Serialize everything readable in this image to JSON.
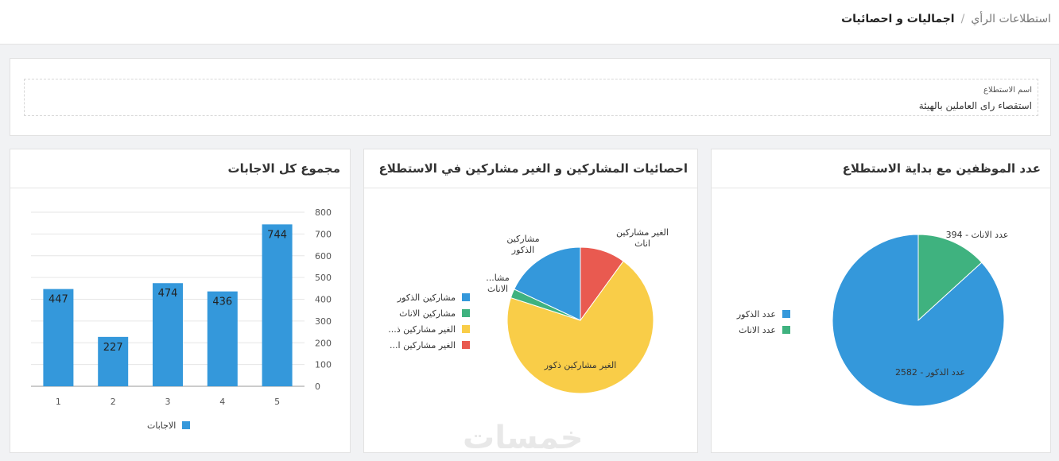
{
  "breadcrumb": {
    "parent": "استطلاعات الرأي",
    "separator": "/",
    "current": "اجماليات و احصائيات"
  },
  "survey": {
    "label": "اسم الاستطلاع",
    "value": "استقصاء راى العاملين بالهيئة"
  },
  "colors": {
    "blue": "#3498db",
    "green": "#3fb27f",
    "yellow": "#f9cd48",
    "red": "#e95a50"
  },
  "cards": {
    "employees": {
      "title": "عدد الموظفين مع بداية الاستطلاع",
      "legend": [
        "عدد الذكور",
        "عدد الاناث"
      ]
    },
    "participants": {
      "title": "احصائيات المشاركين و الغير مشاركين في الاستطلاع",
      "legend": [
        "مشاركين الذكور",
        "مشاركين الاناث",
        "الغير مشاركين ذ...",
        "الغير مشاركين ا..."
      ]
    },
    "answers": {
      "title": "مجموع كل الاجابات",
      "legend": "الاجابات"
    }
  },
  "watermark": "خمسات",
  "chart_data": [
    {
      "type": "pie",
      "title": "عدد الموظفين مع بداية الاستطلاع",
      "categories": [
        "عدد الذكور",
        "عدد الاناث"
      ],
      "values": [
        2582,
        394
      ],
      "slice_labels": [
        "عدد الذكور - 2582",
        "عدد الاناث - 394"
      ],
      "legend": "left"
    },
    {
      "type": "pie",
      "title": "احصائيات المشاركين و الغير مشاركين في الاستطلاع",
      "categories": [
        "مشاركين الذكور",
        "مشاركين الاناث",
        "الغير مشاركين ذكور",
        "الغير مشاركين اناث"
      ],
      "values": [
        18,
        2,
        70,
        10
      ],
      "slice_labels": [
        "مشاركين\nالذكور",
        "مشا...\nالاناث",
        "الغير مشاركين ذكور",
        "الغير مشاركين\nاناث"
      ],
      "legend": "left"
    },
    {
      "type": "bar",
      "title": "مجموع كل الاجابات",
      "categories": [
        "1",
        "2",
        "3",
        "4",
        "5"
      ],
      "series": [
        {
          "name": "الاجابات",
          "values": [
            447,
            227,
            474,
            436,
            744
          ]
        }
      ],
      "ylim": [
        0,
        800
      ],
      "yticks": [
        0,
        100,
        200,
        300,
        400,
        500,
        600,
        700,
        800
      ],
      "grid": true,
      "legend": "bottom"
    }
  ]
}
